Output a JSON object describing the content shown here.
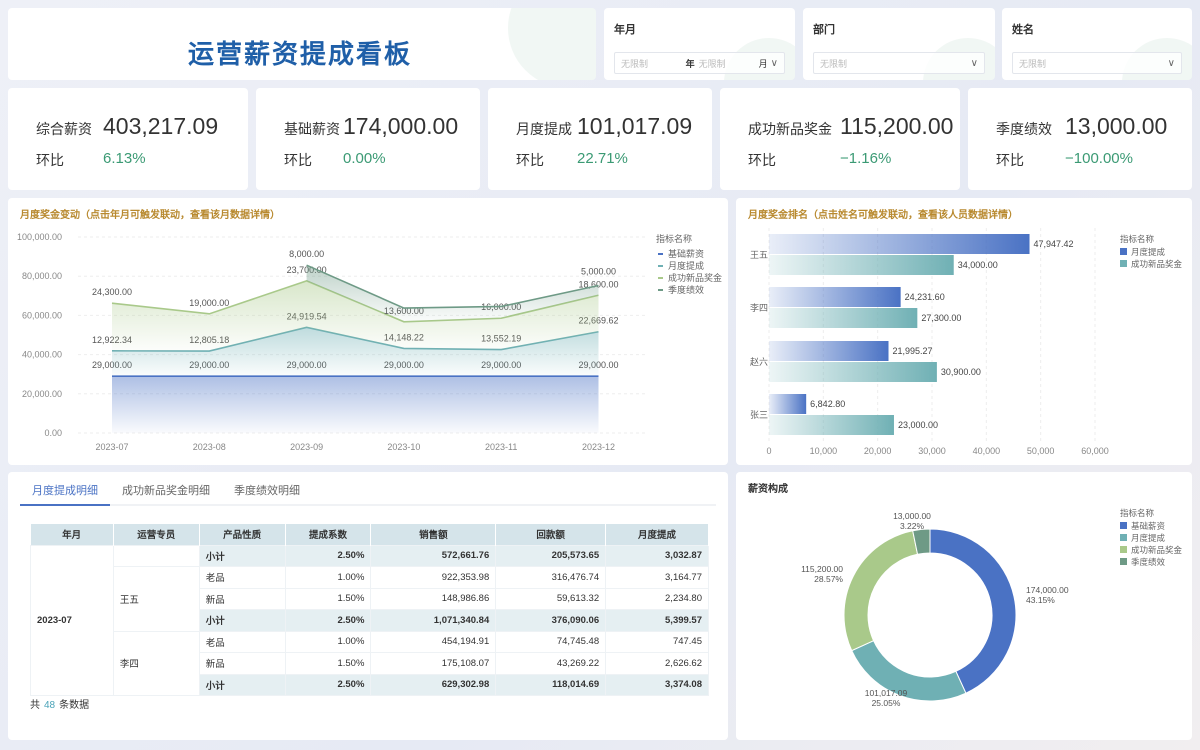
{
  "header": {
    "title": "运营薪资提成看板"
  },
  "filters": [
    {
      "label": "年月",
      "year_placeholder": "无限制",
      "year_unit": "年",
      "month_placeholder": "无限制",
      "month_unit": "月"
    },
    {
      "label": "部门",
      "placeholder": "无限制"
    },
    {
      "label": "姓名",
      "placeholder": "无限制"
    }
  ],
  "kpis": [
    {
      "name": "综合薪资",
      "value": "403,217.09",
      "mom_label": "环比",
      "mom": "6.13%"
    },
    {
      "name": "基础薪资",
      "value": "174,000.00",
      "mom_label": "环比",
      "mom": "0.00%"
    },
    {
      "name": "月度提成",
      "value": "101,017.09",
      "mom_label": "环比",
      "mom": "22.71%"
    },
    {
      "name": "成功新品奖金",
      "value": "115,200.00",
      "mom_label": "环比",
      "mom": "−1.16%"
    },
    {
      "name": "季度绩效",
      "value": "13,000.00",
      "mom_label": "环比",
      "mom": "−100.00%"
    }
  ],
  "colors": {
    "base": "#4a72c4",
    "commission": "#6fb0b4",
    "newproduct": "#a9c98a",
    "quarterly": "#6e9a86",
    "accent": "#b8892e",
    "positive": "#3b9a74"
  },
  "chart_data": [
    {
      "type": "area",
      "stacked": true,
      "title": "月度奖金变动（点击年月可触发联动，查看该月数据详情）",
      "legend_title": "指标名称",
      "legend_position": "right",
      "categories": [
        "2023-07",
        "2023-08",
        "2023-09",
        "2023-10",
        "2023-11",
        "2023-12"
      ],
      "yticks": [
        "0.00",
        "20,000.00",
        "40,000.00",
        "60,000.00",
        "80,000.00",
        "100,000.00"
      ],
      "ylim": [
        0,
        100000
      ],
      "grid": true,
      "series": [
        {
          "name": "基础薪资",
          "values": [
            29000,
            29000,
            29000,
            29000,
            29000,
            29000
          ],
          "labels": [
            "29,000.00",
            "29,000.00",
            "29,000.00",
            "29,000.00",
            "29,000.00",
            "29,000.00"
          ]
        },
        {
          "name": "月度提成",
          "values": [
            12922.34,
            12805.18,
            24919.54,
            14148.22,
            13552.19,
            22669.62
          ],
          "labels": [
            "12,922.34",
            "12,805.18",
            "24,919.54",
            "14,148.22",
            "13,552.19",
            "22,669.62"
          ]
        },
        {
          "name": "成功新品奖金",
          "values": [
            24300,
            19000,
            23700,
            13600,
            16000,
            18600
          ],
          "labels": [
            "24,300.00",
            "19,000.00",
            "23,700.00",
            "13,600.00",
            "16,000.00",
            "18,600.00"
          ]
        },
        {
          "name": "季度绩效",
          "values": [
            null,
            null,
            8000,
            null,
            null,
            5000
          ],
          "labels": [
            null,
            null,
            "8,000.00",
            null,
            null,
            "5,000.00"
          ]
        }
      ]
    },
    {
      "type": "bar",
      "orientation": "horizontal",
      "title": "月度奖金排名（点击姓名可触发联动，查看该人员数据详情）",
      "legend_title": "指标名称",
      "legend_position": "right",
      "categories": [
        "王五",
        "李四",
        "赵六",
        "张三"
      ],
      "xticks": [
        "0",
        "10,000",
        "20,000",
        "30,000",
        "40,000",
        "50,000",
        "60,000"
      ],
      "xlim": [
        0,
        60000
      ],
      "grid": true,
      "series": [
        {
          "name": "月度提成",
          "values": [
            47947.42,
            24231.6,
            21995.27,
            6842.8
          ],
          "labels": [
            "47,947.42",
            "24,231.60",
            "21,995.27",
            "6,842.80"
          ]
        },
        {
          "name": "成功新品奖金",
          "values": [
            34000,
            27300,
            30900,
            23000
          ],
          "labels": [
            "34,000.00",
            "27,300.00",
            "30,900.00",
            "23,000.00"
          ]
        }
      ]
    },
    {
      "type": "pie",
      "donut": true,
      "title": "薪资构成",
      "legend_title": "指标名称",
      "legend_position": "right",
      "slices": [
        {
          "name": "基础薪资",
          "value": 174000,
          "label": "174,000.00",
          "pct": "43.15%"
        },
        {
          "name": "月度提成",
          "value": 101017.09,
          "label": "101,017.09",
          "pct": "25.05%"
        },
        {
          "name": "成功新品奖金",
          "value": 115200,
          "label": "115,200.00",
          "pct": "28.57%"
        },
        {
          "name": "季度绩效",
          "value": 13000,
          "label": "13,000.00",
          "pct": "3.22%"
        }
      ]
    }
  ],
  "detail": {
    "tabs": [
      "月度提成明细",
      "成功新品奖金明细",
      "季度绩效明细"
    ],
    "columns": [
      "年月",
      "运营专员",
      "产品性质",
      "提成系数",
      "销售额",
      "回款额",
      "月度提成"
    ],
    "month": "2023-07",
    "rows": [
      {
        "person": "",
        "type": "小计",
        "rate": "2.50%",
        "sales": "572,661.76",
        "payback": "205,573.65",
        "commission": "3,032.87",
        "subtotal": true
      },
      {
        "person": "王五",
        "type": "老品",
        "rate": "1.00%",
        "sales": "922,353.98",
        "payback": "316,476.74",
        "commission": "3,164.77"
      },
      {
        "person": "王五",
        "type": "新品",
        "rate": "1.50%",
        "sales": "148,986.86",
        "payback": "59,613.32",
        "commission": "2,234.80"
      },
      {
        "person": "王五",
        "type": "小计",
        "rate": "2.50%",
        "sales": "1,071,340.84",
        "payback": "376,090.06",
        "commission": "5,399.57",
        "subtotal": true
      },
      {
        "person": "李四",
        "type": "老品",
        "rate": "1.00%",
        "sales": "454,194.91",
        "payback": "74,745.48",
        "commission": "747.45"
      },
      {
        "person": "李四",
        "type": "新品",
        "rate": "1.50%",
        "sales": "175,108.07",
        "payback": "43,269.22",
        "commission": "2,626.62"
      },
      {
        "person": "李四",
        "type": "小计",
        "rate": "2.50%",
        "sales": "629,302.98",
        "payback": "118,014.69",
        "commission": "3,374.08",
        "subtotal": true
      }
    ],
    "footer": {
      "prefix": "共",
      "count": "48",
      "suffix": "条数据"
    }
  }
}
